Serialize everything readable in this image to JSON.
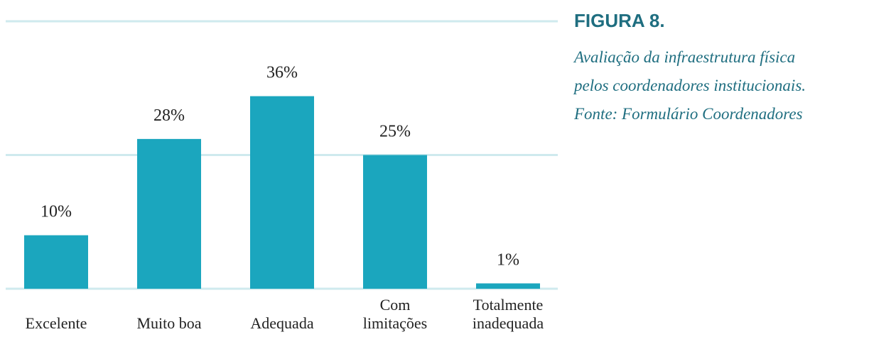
{
  "chart_data": {
    "type": "bar",
    "title": "FIGURA 8.",
    "caption": [
      "Avaliação da infraestrutura física",
      "pelos coordenadores institucionais.",
      "Fonte: Formulário Coordenadores"
    ],
    "categories": [
      "Excelente",
      "Muito boa",
      "Adequada",
      "Com limitações",
      "Totalmente inadequada"
    ],
    "values": [
      10,
      28,
      36,
      25,
      1
    ],
    "value_labels": [
      "10%",
      "28%",
      "36%",
      "25%",
      "1%"
    ],
    "color": "#1ba6be",
    "ylim": [
      0,
      50
    ],
    "yticks": [
      0,
      25,
      50
    ],
    "grid": true
  }
}
